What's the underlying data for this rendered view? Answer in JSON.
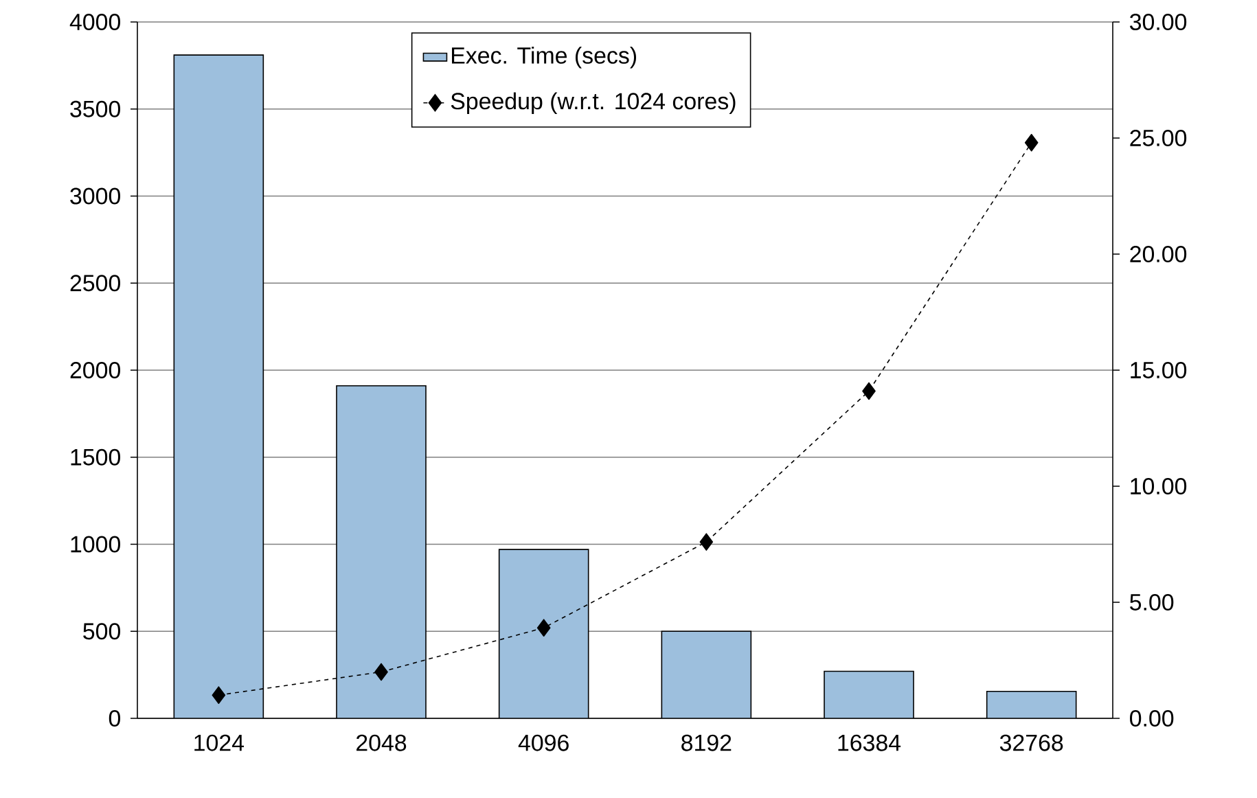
{
  "chart_data": {
    "type": "bar",
    "categories": [
      "1024",
      "2048",
      "4096",
      "8192",
      "16384",
      "32768"
    ],
    "series": [
      {
        "name": "Exec. Time (secs)",
        "color": "#9dbfdd",
        "values": [
          3810,
          1910,
          970,
          500,
          270,
          155
        ]
      },
      {
        "name": "Speedup (w.r.t. 1024 cores)",
        "type": "line",
        "axis": "y2",
        "color": "#000000",
        "values": [
          1.0,
          2.0,
          3.9,
          7.6,
          14.1,
          24.8
        ]
      }
    ],
    "ylim": [
      0,
      4000
    ],
    "yticks": [
      0,
      500,
      1000,
      1500,
      2000,
      2500,
      3000,
      3500,
      4000
    ],
    "y2lim": [
      0,
      30
    ],
    "y2ticks": [
      {
        "value": 0,
        "label": "0.00"
      },
      {
        "value": 5,
        "label": "5.00"
      },
      {
        "value": 10,
        "label": "10.00"
      },
      {
        "value": 15,
        "label": "15.00"
      },
      {
        "value": 20,
        "label": "20.00"
      },
      {
        "value": 25,
        "label": "25.00"
      },
      {
        "value": 30,
        "label": "30.00"
      }
    ],
    "grid": "y",
    "legend": "top",
    "marker": "diamond",
    "line_style": "dashed"
  }
}
